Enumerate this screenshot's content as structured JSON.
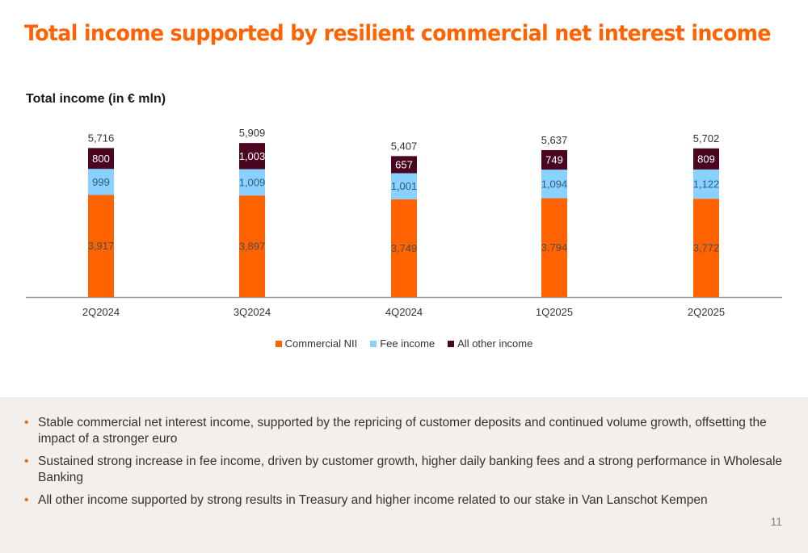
{
  "title": "Total income supported by resilient commercial net interest income",
  "chart_subtitle": "Total income (in € mln)",
  "chart_data": {
    "type": "bar",
    "stacked": true,
    "title": "Total income (in € mln)",
    "categories": [
      "2Q2024",
      "3Q2024",
      "4Q2024",
      "1Q2025",
      "2Q2025"
    ],
    "series": [
      {
        "name": "Commercial NII",
        "color": "#FF6200",
        "values": [
          3917,
          3897,
          3749,
          3794,
          3772
        ]
      },
      {
        "name": "Fee income",
        "color": "#89D2FF",
        "values": [
          999,
          1009,
          1001,
          1094,
          1122
        ]
      },
      {
        "name": "All other income",
        "color": "#4A0521",
        "values": [
          800,
          1003,
          657,
          749,
          809
        ]
      }
    ],
    "totals": [
      5716,
      5909,
      5407,
      5637,
      5702
    ],
    "value_labels": [
      [
        "3,917",
        "3,897",
        "3,749",
        "3,794",
        "3,772"
      ],
      [
        "999",
        "1,009",
        "1,001",
        "1,094",
        "1,122"
      ],
      [
        "800",
        "1,003",
        "657",
        "749",
        "809"
      ]
    ],
    "total_labels": [
      "5,716",
      "5,909",
      "5,407",
      "5,637",
      "5,702"
    ],
    "legend_position": "bottom",
    "grid": false
  },
  "bullets": [
    "Stable commercial net interest income, supported by the repricing of customer deposits and continued volume growth, offsetting the impact of a stronger euro",
    "Sustained strong increase in fee income, driven by customer growth, higher daily banking fees and a strong performance in Wholesale Banking",
    "All other income supported by strong results in Treasury and higher income related to our stake in Van Lanschot Kempen"
  ],
  "page_number": "11"
}
